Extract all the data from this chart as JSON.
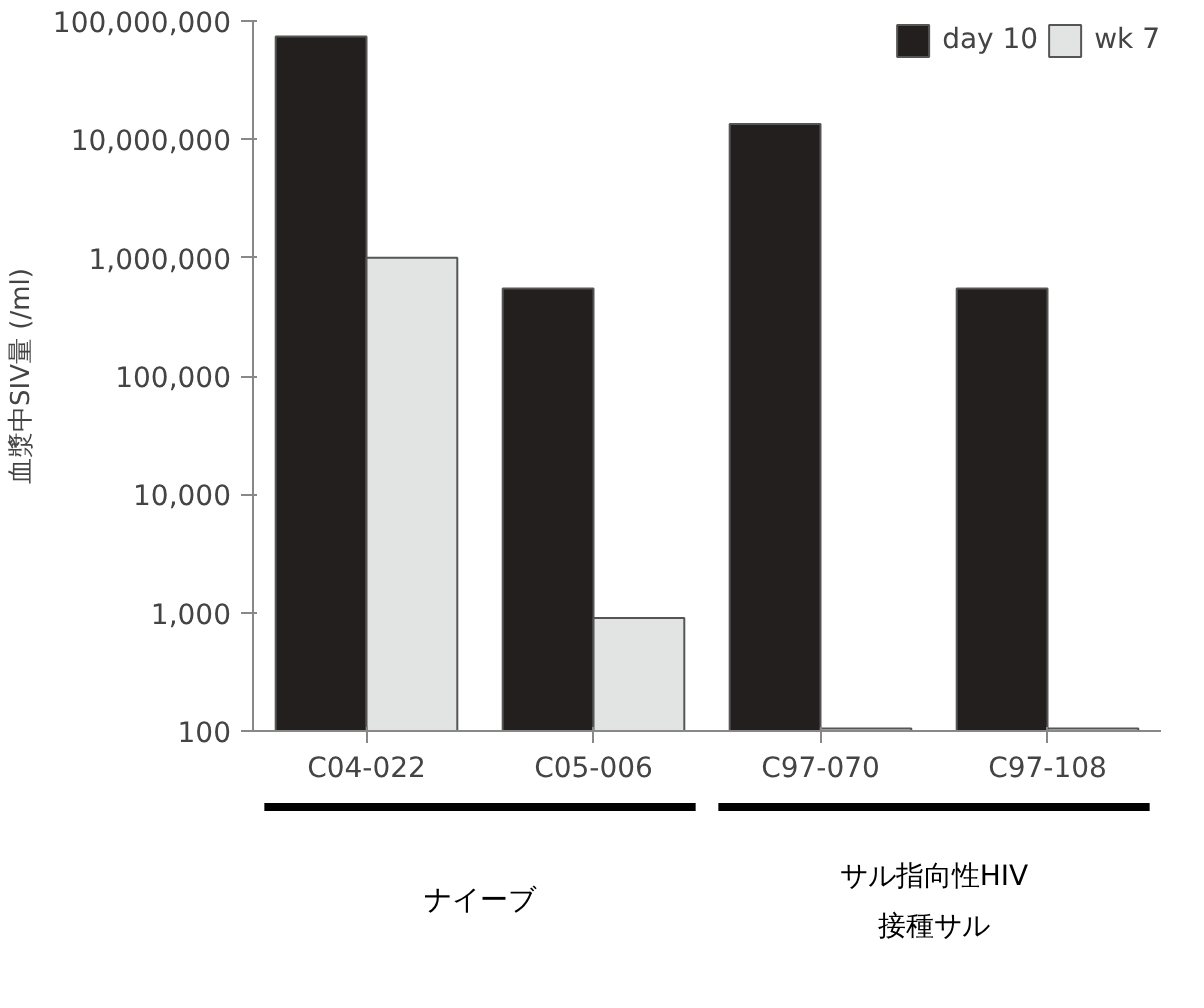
{
  "chart_data": {
    "type": "bar",
    "ylabel": "血漿中SIV量 (/ml)",
    "categories": [
      "C04-022",
      "C05-006",
      "C97-070",
      "C97-108"
    ],
    "series": [
      {
        "name": "day 10",
        "color": "#231f1f",
        "values": [
          74000000,
          550000,
          13500000,
          550000
        ]
      },
      {
        "name": "wk 7",
        "color": "#e2e3e3",
        "values": [
          1000000,
          900,
          105,
          105
        ]
      }
    ],
    "log": true,
    "ylim": [
      100,
      100000000
    ],
    "yticks": [
      {
        "value": 100,
        "label": "100"
      },
      {
        "value": 1000,
        "label": "1,000"
      },
      {
        "value": 10000,
        "label": "10,000"
      },
      {
        "value": 100000,
        "label": "100,000"
      },
      {
        "value": 1000000,
        "label": "1,000,000"
      },
      {
        "value": 10000000,
        "label": "10,000,000"
      },
      {
        "value": 100000000,
        "label": "100,000,000"
      }
    ],
    "grid": false,
    "legend": "top right",
    "annotations": [
      "ナイーブ",
      "サル指向性HIV\n接種サル"
    ]
  }
}
